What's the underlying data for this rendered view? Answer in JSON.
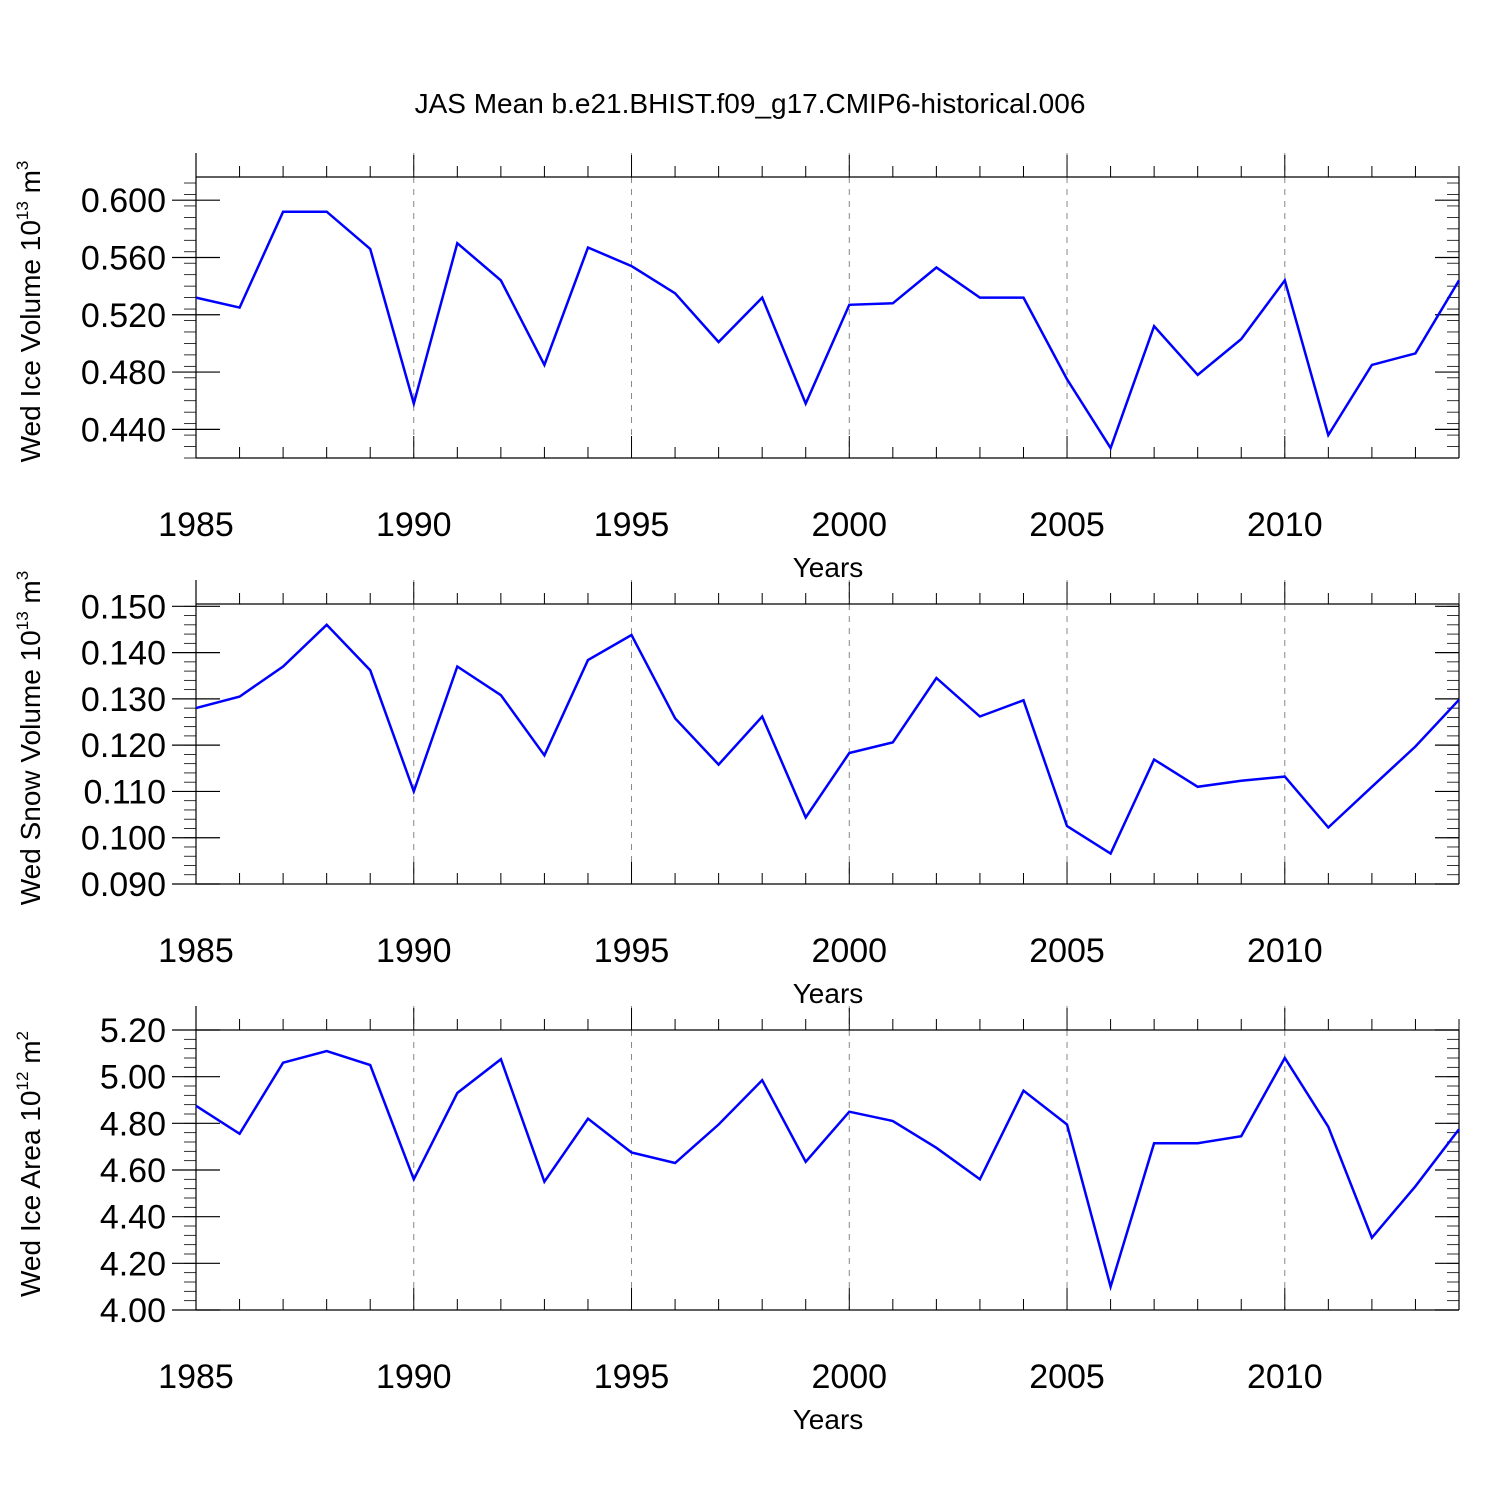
{
  "figure_title": "JAS Mean b.e21.BHIST.f09_g17.CMIP6-historical.006",
  "colors": {
    "line": "#0000ff",
    "axis": "#000000",
    "grid": "#888888",
    "background": "#ffffff"
  },
  "chart_data": [
    {
      "type": "line",
      "title": "JAS Mean b.e21.BHIST.f09_g17.CMIP6-historical.006",
      "xlabel": "Years",
      "ylabel": {
        "main": "Wed Ice Volume 10",
        "exp": "13",
        "unit": " m",
        "unit_exp": "3"
      },
      "xlim": [
        1985,
        2014
      ],
      "ylim": [
        0.42,
        0.6162
      ],
      "x_ticks": [
        1985,
        1990,
        1995,
        2000,
        2005,
        2010
      ],
      "x_tick_labels": [
        "1985",
        "1990",
        "1995",
        "2000",
        "2005",
        "2010"
      ],
      "y_ticks": [
        0.44,
        0.48,
        0.52,
        0.56,
        0.6
      ],
      "y_tick_labels": [
        "0.440",
        "0.480",
        "0.520",
        "0.560",
        "0.600"
      ],
      "y_minor_step": 0.008,
      "vertical_grid": [
        1990,
        1995,
        2000,
        2005,
        2010
      ],
      "series": [
        {
          "name": "Wed Ice Volume",
          "x": [
            1985,
            1986,
            1987,
            1988,
            1989,
            1990,
            1991,
            1992,
            1993,
            1994,
            1995,
            1996,
            1997,
            1998,
            1999,
            2000,
            2001,
            2002,
            2003,
            2004,
            2005,
            2006,
            2007,
            2008,
            2009,
            2010,
            2011,
            2012,
            2013,
            2014
          ],
          "values": [
            0.532,
            0.525,
            0.592,
            0.592,
            0.566,
            0.458,
            0.57,
            0.544,
            0.485,
            0.567,
            0.554,
            0.535,
            0.501,
            0.532,
            0.458,
            0.527,
            0.528,
            0.553,
            0.532,
            0.532,
            0.475,
            0.427,
            0.512,
            0.478,
            0.503,
            0.544,
            0.436,
            0.485,
            0.493,
            0.544
          ]
        }
      ]
    },
    {
      "type": "line",
      "xlabel": "Years",
      "ylabel": {
        "main": "Wed Snow Volume 10",
        "exp": "13",
        "unit": " m",
        "unit_exp": "3"
      },
      "xlim": [
        1985,
        2014
      ],
      "ylim": [
        0.09,
        0.1505
      ],
      "x_ticks": [
        1985,
        1990,
        1995,
        2000,
        2005,
        2010
      ],
      "x_tick_labels": [
        "1985",
        "1990",
        "1995",
        "2000",
        "2005",
        "2010"
      ],
      "y_ticks": [
        0.09,
        0.1,
        0.11,
        0.12,
        0.13,
        0.14,
        0.15
      ],
      "y_tick_labels": [
        "0.090",
        "0.100",
        "0.110",
        "0.120",
        "0.130",
        "0.140",
        "0.150"
      ],
      "y_minor_step": 0.002,
      "vertical_grid": [
        1990,
        1995,
        2000,
        2005,
        2010
      ],
      "series": [
        {
          "name": "Wed Snow Volume",
          "x": [
            1985,
            1986,
            1987,
            1988,
            1989,
            1990,
            1991,
            1992,
            1993,
            1994,
            1995,
            1996,
            1997,
            1998,
            1999,
            2000,
            2001,
            2002,
            2003,
            2004,
            2005,
            2006,
            2007,
            2008,
            2009,
            2010,
            2011,
            2012,
            2013,
            2014
          ],
          "values": [
            0.128,
            0.1305,
            0.137,
            0.146,
            0.1362,
            0.11,
            0.137,
            0.1308,
            0.1178,
            0.1384,
            0.1438,
            0.1258,
            0.1158,
            0.1262,
            0.1044,
            0.1183,
            0.1206,
            0.1345,
            0.1262,
            0.1297,
            0.1025,
            0.0966,
            0.1169,
            0.111,
            0.1123,
            0.1132,
            0.1022,
            0.111,
            0.1197,
            0.1298
          ]
        }
      ]
    },
    {
      "type": "line",
      "xlabel": "Years",
      "ylabel": {
        "main": "Wed Ice Area 10",
        "exp": "12",
        "unit": " m",
        "unit_exp": "2"
      },
      "xlim": [
        1985,
        2014
      ],
      "ylim": [
        4.0,
        5.2
      ],
      "x_ticks": [
        1985,
        1990,
        1995,
        2000,
        2005,
        2010
      ],
      "x_tick_labels": [
        "1985",
        "1990",
        "1995",
        "2000",
        "2005",
        "2010"
      ],
      "y_ticks": [
        4.0,
        4.2,
        4.4,
        4.6,
        4.8,
        5.0,
        5.2
      ],
      "y_tick_labels": [
        "4.00",
        "4.20",
        "4.40",
        "4.60",
        "4.80",
        "5.00",
        "5.20"
      ],
      "y_minor_step": 0.04,
      "vertical_grid": [
        1990,
        1995,
        2000,
        2005,
        2010
      ],
      "series": [
        {
          "name": "Wed Ice Area",
          "x": [
            1985,
            1986,
            1987,
            1988,
            1989,
            1990,
            1991,
            1992,
            1993,
            1994,
            1995,
            1996,
            1997,
            1998,
            1999,
            2000,
            2001,
            2002,
            2003,
            2004,
            2005,
            2006,
            2007,
            2008,
            2009,
            2010,
            2011,
            2012,
            2013,
            2014
          ],
          "values": [
            4.875,
            4.755,
            5.06,
            5.11,
            5.05,
            4.56,
            4.93,
            5.075,
            4.55,
            4.82,
            4.675,
            4.63,
            4.795,
            4.985,
            4.635,
            4.85,
            4.81,
            4.695,
            4.56,
            4.94,
            4.795,
            4.1,
            4.715,
            4.715,
            4.745,
            5.08,
            4.785,
            4.31,
            4.53,
            4.775
          ]
        }
      ]
    }
  ]
}
